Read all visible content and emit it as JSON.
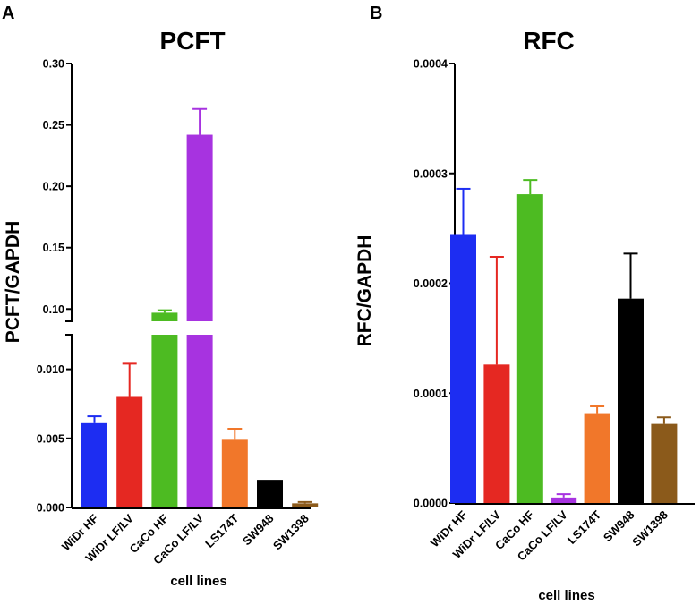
{
  "chart_data": [
    {
      "type": "bar",
      "panel": "A",
      "title": "PCFT",
      "ylabel": "PCFT/GAPDH",
      "xlabel": "cell lines",
      "broken_axis": true,
      "lower_ylim": [
        0,
        0.0125
      ],
      "upper_ylim": [
        0.09,
        0.3
      ],
      "lower_ticks": [
        "0.000",
        "0.005",
        "0.010"
      ],
      "lower_tick_values": [
        0,
        0.005,
        0.01
      ],
      "upper_ticks": [
        "0.10",
        "0.15",
        "0.20",
        "0.25",
        "0.30"
      ],
      "upper_tick_values": [
        0.1,
        0.15,
        0.2,
        0.25,
        0.3
      ],
      "categories": [
        "WiDr HF",
        "WiDr LF/LV",
        "CaCo HF",
        "CaCo LF/LV",
        "LS174T",
        "SW948",
        "SW1398"
      ],
      "values": [
        0.0061,
        0.008,
        0.097,
        0.242,
        0.0049,
        0.002,
        0.0003
      ],
      "errors": [
        0.0005,
        0.0024,
        0.002,
        0.021,
        0.0008,
        0.0,
        0.0001
      ],
      "colors": [
        "#1d2df2",
        "#e52822",
        "#4dbb22",
        "#a733e0",
        "#f1772a",
        "#000000",
        "#8b5a1b"
      ]
    },
    {
      "type": "bar",
      "panel": "B",
      "title": "RFC",
      "ylabel": "RFC/GAPDH",
      "xlabel": "cell lines",
      "ylim": [
        0,
        0.0004
      ],
      "ticks": [
        "0.0000",
        "0.0001",
        "0.0002",
        "0.0003",
        "0.0004"
      ],
      "tick_values": [
        0,
        0.0001,
        0.0002,
        0.0003,
        0.0004
      ],
      "categories": [
        "WiDr HF",
        "WiDr LF/LV",
        "CaCo HF",
        "CaCo LF/LV",
        "LS174T",
        "SW948",
        "SW1398"
      ],
      "values": [
        0.000244,
        0.000126,
        0.000281,
        5e-06,
        8.1e-05,
        0.000186,
        7.2e-05
      ],
      "errors": [
        4.2e-05,
        9.8e-05,
        1.3e-05,
        3e-06,
        7e-06,
        4.1e-05,
        6e-06
      ],
      "colors": [
        "#1d2df2",
        "#e52822",
        "#4dbb22",
        "#a733e0",
        "#f1772a",
        "#000000",
        "#8b5a1b"
      ]
    }
  ]
}
